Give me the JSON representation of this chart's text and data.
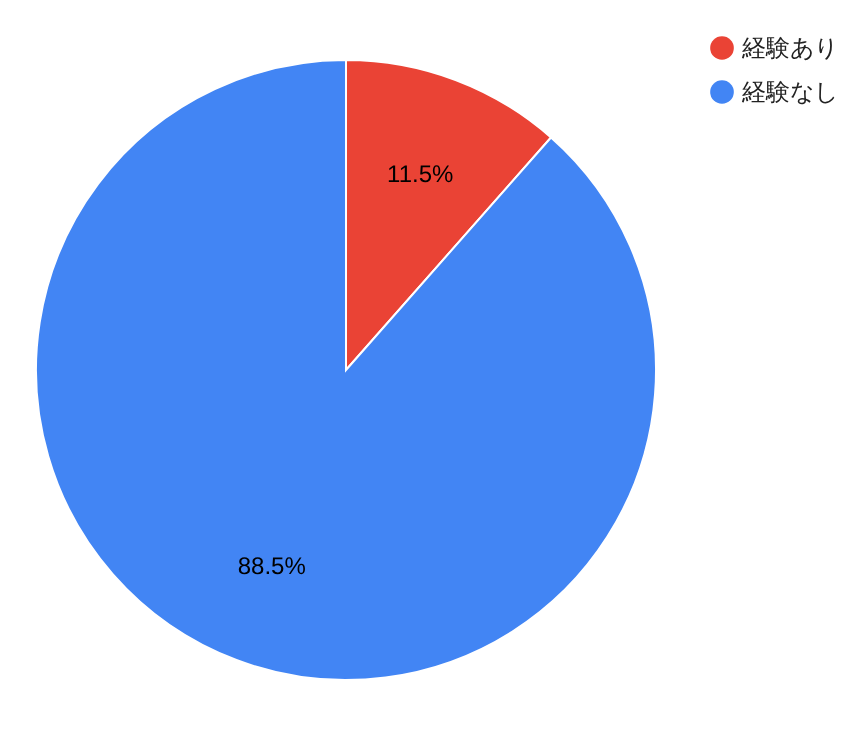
{
  "chart_data": {
    "type": "pie",
    "categories": [
      "経験あり",
      "経験なし"
    ],
    "values": [
      11.5,
      88.5
    ],
    "colors": [
      "#ea4335",
      "#4285f4"
    ],
    "value_labels": [
      "11.5%",
      "88.5%"
    ],
    "legend": "top right"
  }
}
